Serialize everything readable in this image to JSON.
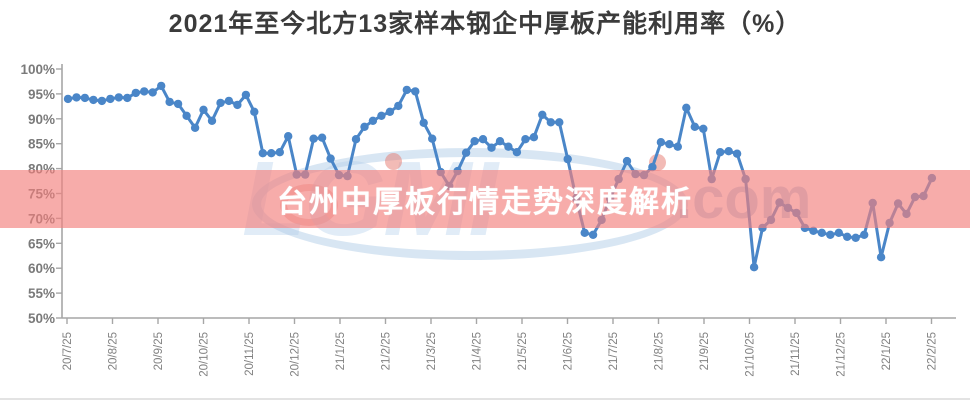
{
  "title": "2021年至今北方13家样本钢企中厚板产能利用率（%）",
  "banner": {
    "text": "台州中厚板行情走势深度解析"
  },
  "watermark": {
    "logo_text": "LGMI",
    "com_text": ".com"
  },
  "colors": {
    "line": "#4a86c8",
    "banner_fill": "#f2807c",
    "banner_text": "#ffffff",
    "axis": "#a6a6a6",
    "tick_label": "#7a7a7a",
    "watermark_blue": "#aecfe8",
    "watermark_red": "#e5786e"
  },
  "chart_data": {
    "type": "line",
    "title": "2021年至今北方13家样本钢企中厚板产能利用率（%）",
    "xlabel": "",
    "ylabel": "",
    "ylim": [
      50,
      100
    ],
    "grid": false,
    "legend": "none",
    "marker": "circle",
    "yticks": [
      "100%",
      "95%",
      "90%",
      "85%",
      "80%",
      "75%",
      "70%",
      "65%",
      "60%",
      "55%",
      "50%"
    ],
    "ytick_values": [
      100,
      95,
      90,
      85,
      80,
      75,
      70,
      65,
      60,
      55,
      50
    ],
    "x_labels": [
      "20/7/25",
      "20/8/25",
      "20/9/25",
      "20/10/25",
      "20/11/25",
      "20/12/25",
      "21/1/25",
      "21/2/25",
      "21/3/25",
      "21/4/25",
      "21/5/25",
      "21/6/25",
      "21/7/25",
      "21/8/25",
      "21/9/25",
      "21/10/25",
      "21/11/25",
      "21/12/25",
      "22/1/25",
      "22/2/25"
    ],
    "series": [
      {
        "color": "#4a86c8",
        "values": [
          94.0,
          94.3,
          94.2,
          93.8,
          93.6,
          94.0,
          94.3,
          94.2,
          95.2,
          95.5,
          95.3,
          96.6,
          93.4,
          93.0,
          90.6,
          88.2,
          91.8,
          89.6,
          93.2,
          93.6,
          92.8,
          94.8,
          91.4,
          83.1,
          83.1,
          83.3,
          86.5,
          78.8,
          78.8,
          86.0,
          86.2,
          82.0,
          78.7,
          78.5,
          85.9,
          88.4,
          89.6,
          90.6,
          91.4,
          92.6,
          95.8,
          95.5,
          89.2,
          86.0,
          79.3,
          76.5,
          79.5,
          83.2,
          85.5,
          85.9,
          84.2,
          85.5,
          84.4,
          83.3,
          85.9,
          86.3,
          90.8,
          89.3,
          89.3,
          81.9,
          74.0,
          67.1,
          66.7,
          69.7,
          74.0,
          77.9,
          81.5,
          78.9,
          78.7,
          80.3,
          85.3,
          84.9,
          84.4,
          92.2,
          88.4,
          88.0,
          77.9,
          83.3,
          83.5,
          83.0,
          77.9,
          60.2,
          68.1,
          69.7,
          73.2,
          72.1,
          71.1,
          68.1,
          67.5,
          67.1,
          66.7,
          67.1,
          66.3,
          66.1,
          66.7,
          73.1,
          62.2,
          69.1,
          73.0,
          70.9,
          74.3,
          74.5,
          78.1
        ]
      }
    ]
  }
}
